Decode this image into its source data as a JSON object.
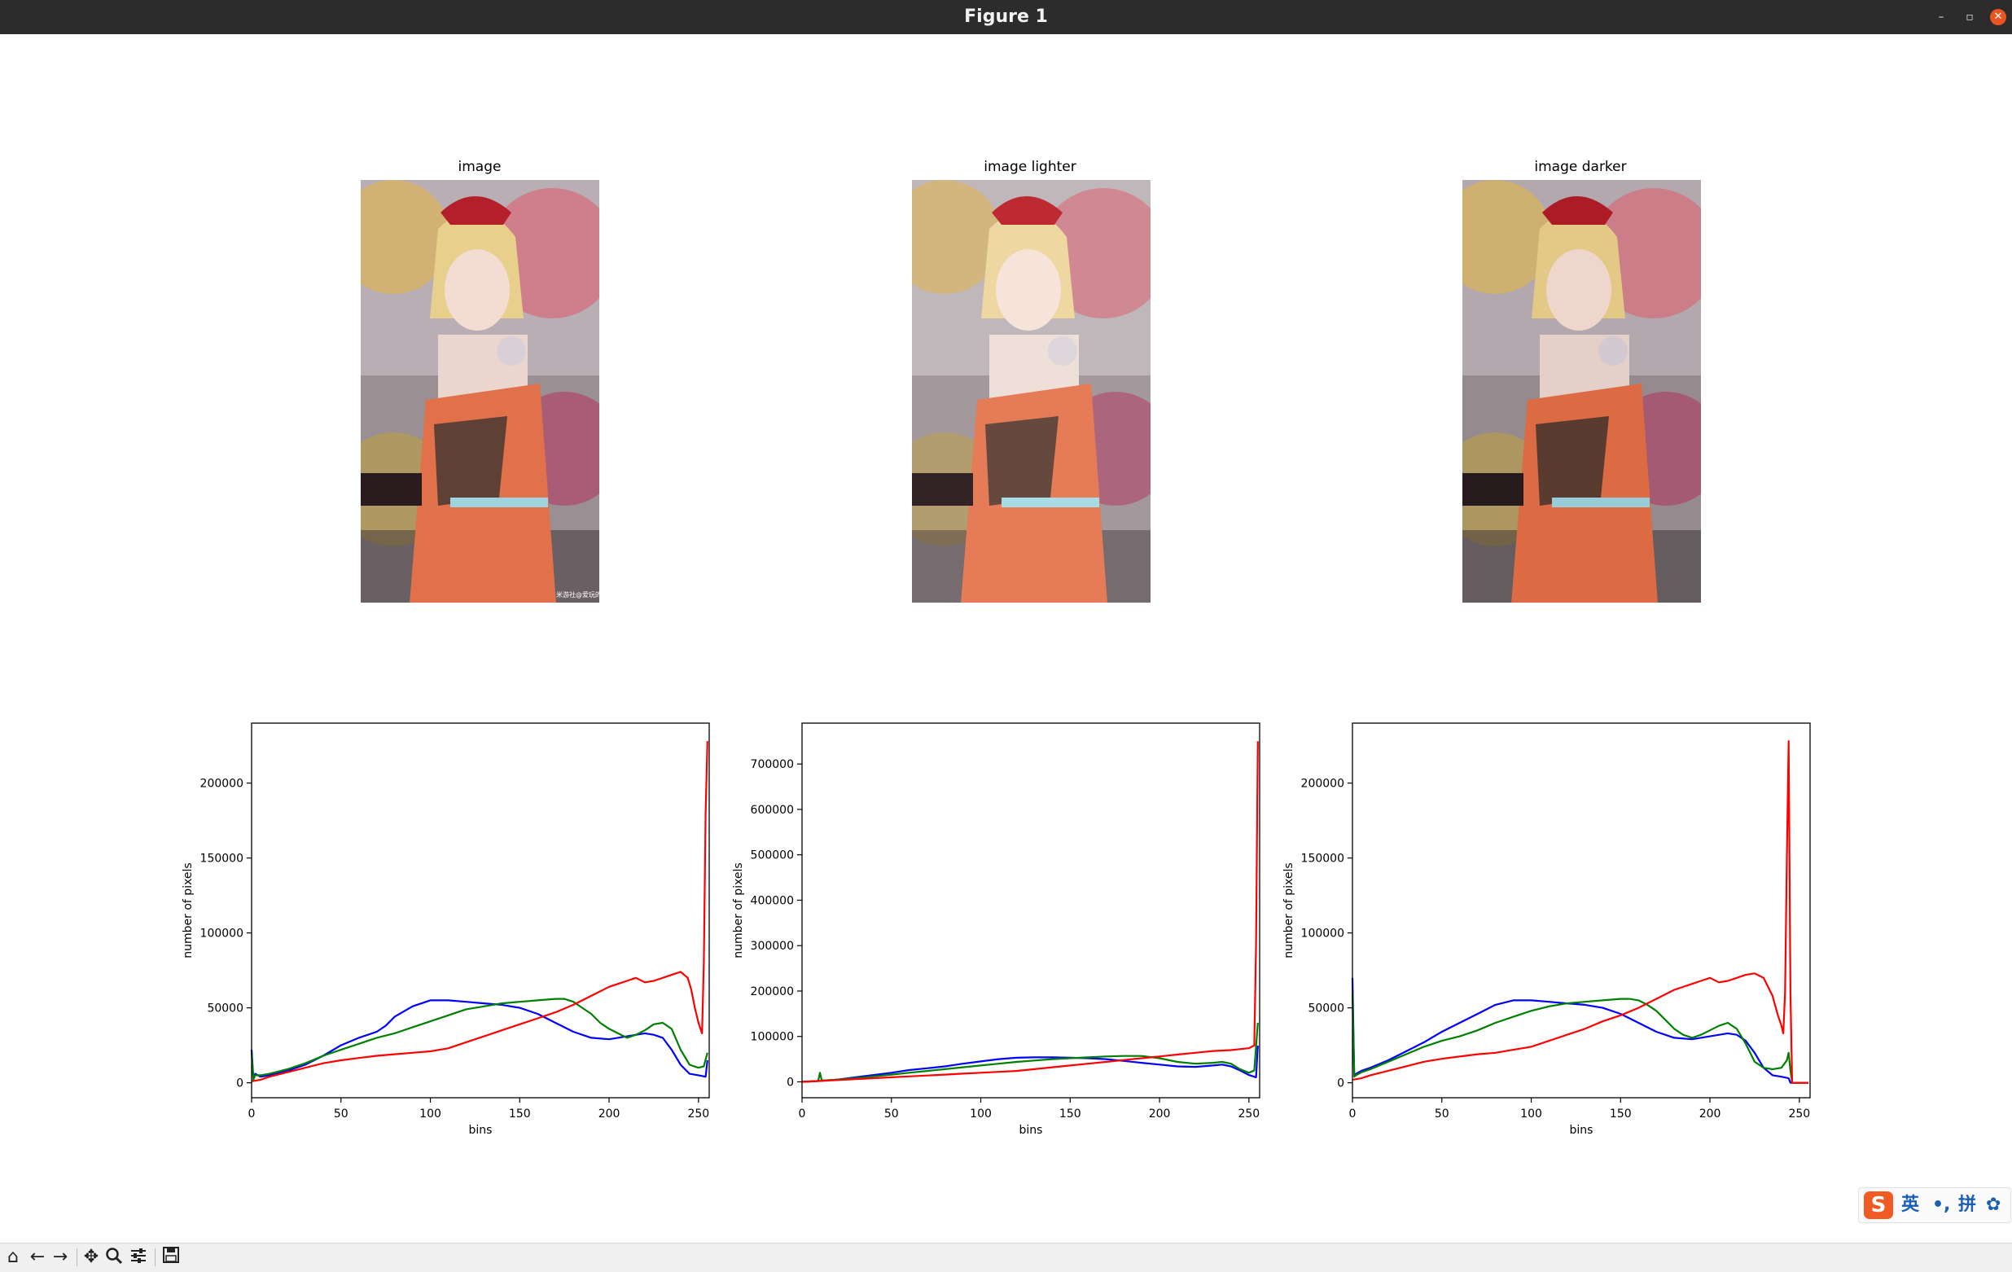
{
  "window": {
    "title": "Figure 1",
    "controls": [
      "–",
      "▫",
      "✕"
    ]
  },
  "panels": [
    {
      "title": "image"
    },
    {
      "title": "image lighter"
    },
    {
      "title": "image darker"
    }
  ],
  "photo": {
    "watermark": "米游社@爱玩的"
  },
  "colors": {
    "blue": "#0000ff",
    "green": "#008000",
    "red": "#ff0000",
    "titlebar": "#2c2c2c",
    "close": "#e95420"
  },
  "chart_data": [
    {
      "type": "line",
      "xlabel": "bins",
      "ylabel": "number of pixels",
      "xlim": [
        0,
        256
      ],
      "ylim": [
        -10000,
        240000
      ],
      "xticks": [
        0,
        50,
        100,
        150,
        200,
        250
      ],
      "yticks": [
        0,
        50000,
        100000,
        150000,
        200000
      ],
      "series": [
        {
          "color": "#0000ff",
          "x": [
            0,
            1,
            2,
            5,
            10,
            20,
            30,
            40,
            50,
            60,
            70,
            75,
            80,
            90,
            100,
            110,
            120,
            130,
            140,
            150,
            160,
            170,
            180,
            190,
            200,
            210,
            220,
            225,
            230,
            235,
            240,
            245,
            250,
            254,
            255
          ],
          "y": [
            22000,
            3000,
            6000,
            4000,
            5000,
            8000,
            12000,
            18000,
            25000,
            30000,
            34000,
            38000,
            44000,
            51000,
            55000,
            55000,
            54000,
            53000,
            52000,
            50000,
            46000,
            40000,
            34000,
            30000,
            29000,
            31000,
            33000,
            32000,
            30000,
            22000,
            12000,
            6000,
            5000,
            4000,
            15000
          ]
        },
        {
          "color": "#008000",
          "x": [
            0,
            1,
            2,
            5,
            10,
            20,
            30,
            40,
            50,
            60,
            70,
            80,
            90,
            100,
            110,
            120,
            130,
            140,
            150,
            160,
            170,
            175,
            180,
            185,
            190,
            195,
            200,
            205,
            210,
            215,
            220,
            225,
            230,
            235,
            240,
            245,
            250,
            253,
            255
          ],
          "y": [
            20000,
            2000,
            5000,
            5000,
            6000,
            9000,
            13000,
            18000,
            22000,
            26000,
            30000,
            33000,
            37000,
            41000,
            45000,
            49000,
            51000,
            53000,
            54000,
            55000,
            56000,
            56000,
            54000,
            50000,
            46000,
            40000,
            36000,
            33000,
            30000,
            32000,
            35000,
            39000,
            40000,
            36000,
            22000,
            12000,
            10000,
            11000,
            20000
          ]
        },
        {
          "color": "#ff0000",
          "x": [
            0,
            5,
            10,
            20,
            30,
            40,
            50,
            60,
            70,
            80,
            90,
            100,
            110,
            120,
            130,
            140,
            150,
            160,
            170,
            180,
            190,
            200,
            210,
            215,
            220,
            225,
            230,
            235,
            240,
            244,
            246,
            248,
            250,
            252,
            253,
            254,
            255
          ],
          "y": [
            1000,
            2000,
            4000,
            7000,
            10000,
            13000,
            15000,
            16500,
            18000,
            19000,
            20000,
            21000,
            23000,
            27000,
            31000,
            35000,
            39000,
            43000,
            47000,
            52000,
            58000,
            64000,
            68000,
            70000,
            67000,
            68000,
            70000,
            72000,
            74000,
            70000,
            62000,
            50000,
            40000,
            33000,
            80000,
            180000,
            228000
          ]
        }
      ]
    },
    {
      "type": "line",
      "xlabel": "bins",
      "ylabel": "number of pixels",
      "xlim": [
        0,
        256
      ],
      "ylim": [
        -35000,
        790000
      ],
      "xticks": [
        0,
        50,
        100,
        150,
        200,
        250
      ],
      "yticks": [
        0,
        100000,
        200000,
        300000,
        400000,
        500000,
        600000,
        700000
      ],
      "series": [
        {
          "color": "#0000ff",
          "x": [
            0,
            10,
            20,
            30,
            40,
            50,
            60,
            70,
            80,
            90,
            100,
            110,
            120,
            130,
            140,
            150,
            160,
            170,
            180,
            190,
            200,
            210,
            220,
            230,
            235,
            240,
            245,
            250,
            254,
            255
          ],
          "y": [
            0,
            2000,
            5000,
            10000,
            15000,
            20000,
            26000,
            30000,
            34000,
            40000,
            45000,
            50000,
            53000,
            54000,
            54000,
            53000,
            52000,
            50000,
            46000,
            42000,
            38000,
            34000,
            33000,
            36000,
            38000,
            34000,
            25000,
            15000,
            10000,
            80000
          ]
        },
        {
          "color": "#008000",
          "x": [
            0,
            9,
            10,
            11,
            12,
            20,
            30,
            40,
            50,
            60,
            70,
            80,
            90,
            100,
            110,
            120,
            130,
            140,
            150,
            160,
            170,
            180,
            190,
            200,
            210,
            220,
            230,
            235,
            240,
            245,
            250,
            253,
            255
          ],
          "y": [
            0,
            2000,
            20000,
            4000,
            3000,
            5000,
            8000,
            12000,
            16000,
            20000,
            24000,
            28000,
            32000,
            36000,
            40000,
            44000,
            47000,
            50000,
            52000,
            54000,
            56000,
            57000,
            57000,
            52000,
            44000,
            40000,
            42000,
            44000,
            40000,
            28000,
            20000,
            25000,
            130000
          ]
        },
        {
          "color": "#ff0000",
          "x": [
            0,
            10,
            20,
            30,
            40,
            50,
            60,
            70,
            80,
            90,
            100,
            110,
            120,
            130,
            140,
            150,
            160,
            170,
            180,
            190,
            200,
            210,
            220,
            230,
            240,
            245,
            250,
            253,
            254,
            255
          ],
          "y": [
            0,
            2000,
            4000,
            6000,
            8000,
            10000,
            12000,
            14000,
            16000,
            18000,
            20000,
            22000,
            24000,
            28000,
            32000,
            36000,
            40000,
            44000,
            48000,
            52000,
            56000,
            60000,
            64000,
            68000,
            70000,
            72000,
            74000,
            80000,
            300000,
            750000
          ]
        }
      ]
    },
    {
      "type": "line",
      "xlabel": "bins",
      "ylabel": "number of pixels",
      "xlim": [
        0,
        256
      ],
      "ylim": [
        -10000,
        240000
      ],
      "xticks": [
        0,
        50,
        100,
        150,
        200,
        250
      ],
      "yticks": [
        0,
        50000,
        100000,
        150000,
        200000
      ],
      "series": [
        {
          "color": "#0000ff",
          "x": [
            0,
            1,
            2,
            5,
            10,
            20,
            30,
            40,
            50,
            60,
            70,
            80,
            90,
            100,
            110,
            120,
            130,
            140,
            150,
            160,
            170,
            180,
            190,
            200,
            210,
            215,
            220,
            225,
            230,
            235,
            240,
            244,
            245,
            246,
            255
          ],
          "y": [
            70000,
            5000,
            6000,
            8000,
            10000,
            15000,
            21000,
            27000,
            34000,
            40000,
            46000,
            52000,
            55000,
            55000,
            54000,
            53000,
            52000,
            50000,
            46000,
            40000,
            34000,
            30000,
            29000,
            31000,
            33000,
            32000,
            28000,
            20000,
            10000,
            5000,
            4000,
            3000,
            0,
            0,
            0
          ]
        },
        {
          "color": "#008000",
          "x": [
            0,
            1,
            2,
            5,
            10,
            20,
            30,
            40,
            50,
            60,
            70,
            80,
            90,
            100,
            110,
            120,
            130,
            140,
            150,
            155,
            160,
            165,
            170,
            175,
            180,
            185,
            190,
            195,
            200,
            205,
            210,
            215,
            220,
            225,
            230,
            235,
            240,
            243,
            244,
            245,
            246,
            255
          ],
          "y": [
            60000,
            4000,
            5000,
            7000,
            9000,
            14000,
            19000,
            24000,
            28000,
            31000,
            35000,
            40000,
            44000,
            48000,
            51000,
            53000,
            54000,
            55000,
            56000,
            56000,
            55000,
            52000,
            48000,
            42000,
            36000,
            32000,
            30000,
            32000,
            35000,
            38000,
            40000,
            36000,
            26000,
            14000,
            10000,
            9000,
            10000,
            15000,
            20000,
            8000,
            0,
            0
          ]
        },
        {
          "color": "#ff0000",
          "x": [
            0,
            5,
            10,
            20,
            30,
            40,
            50,
            60,
            70,
            80,
            90,
            100,
            110,
            120,
            130,
            140,
            150,
            160,
            170,
            180,
            190,
            195,
            200,
            205,
            210,
            215,
            220,
            225,
            230,
            235,
            238,
            240,
            241,
            242,
            243,
            244,
            245,
            246,
            255
          ],
          "y": [
            2000,
            3000,
            5000,
            8000,
            11000,
            14000,
            16000,
            17500,
            19000,
            20000,
            22000,
            24000,
            28000,
            32000,
            36000,
            41000,
            45000,
            50000,
            56000,
            62000,
            66000,
            68000,
            70000,
            67000,
            68000,
            70000,
            72000,
            73000,
            70000,
            58000,
            45000,
            38000,
            33000,
            60000,
            150000,
            228000,
            60000,
            0,
            0
          ]
        }
      ]
    }
  ],
  "ime": {
    "logo": "S",
    "mode": "英",
    "punct": "•,",
    "method": "拼",
    "settings": "✿"
  }
}
